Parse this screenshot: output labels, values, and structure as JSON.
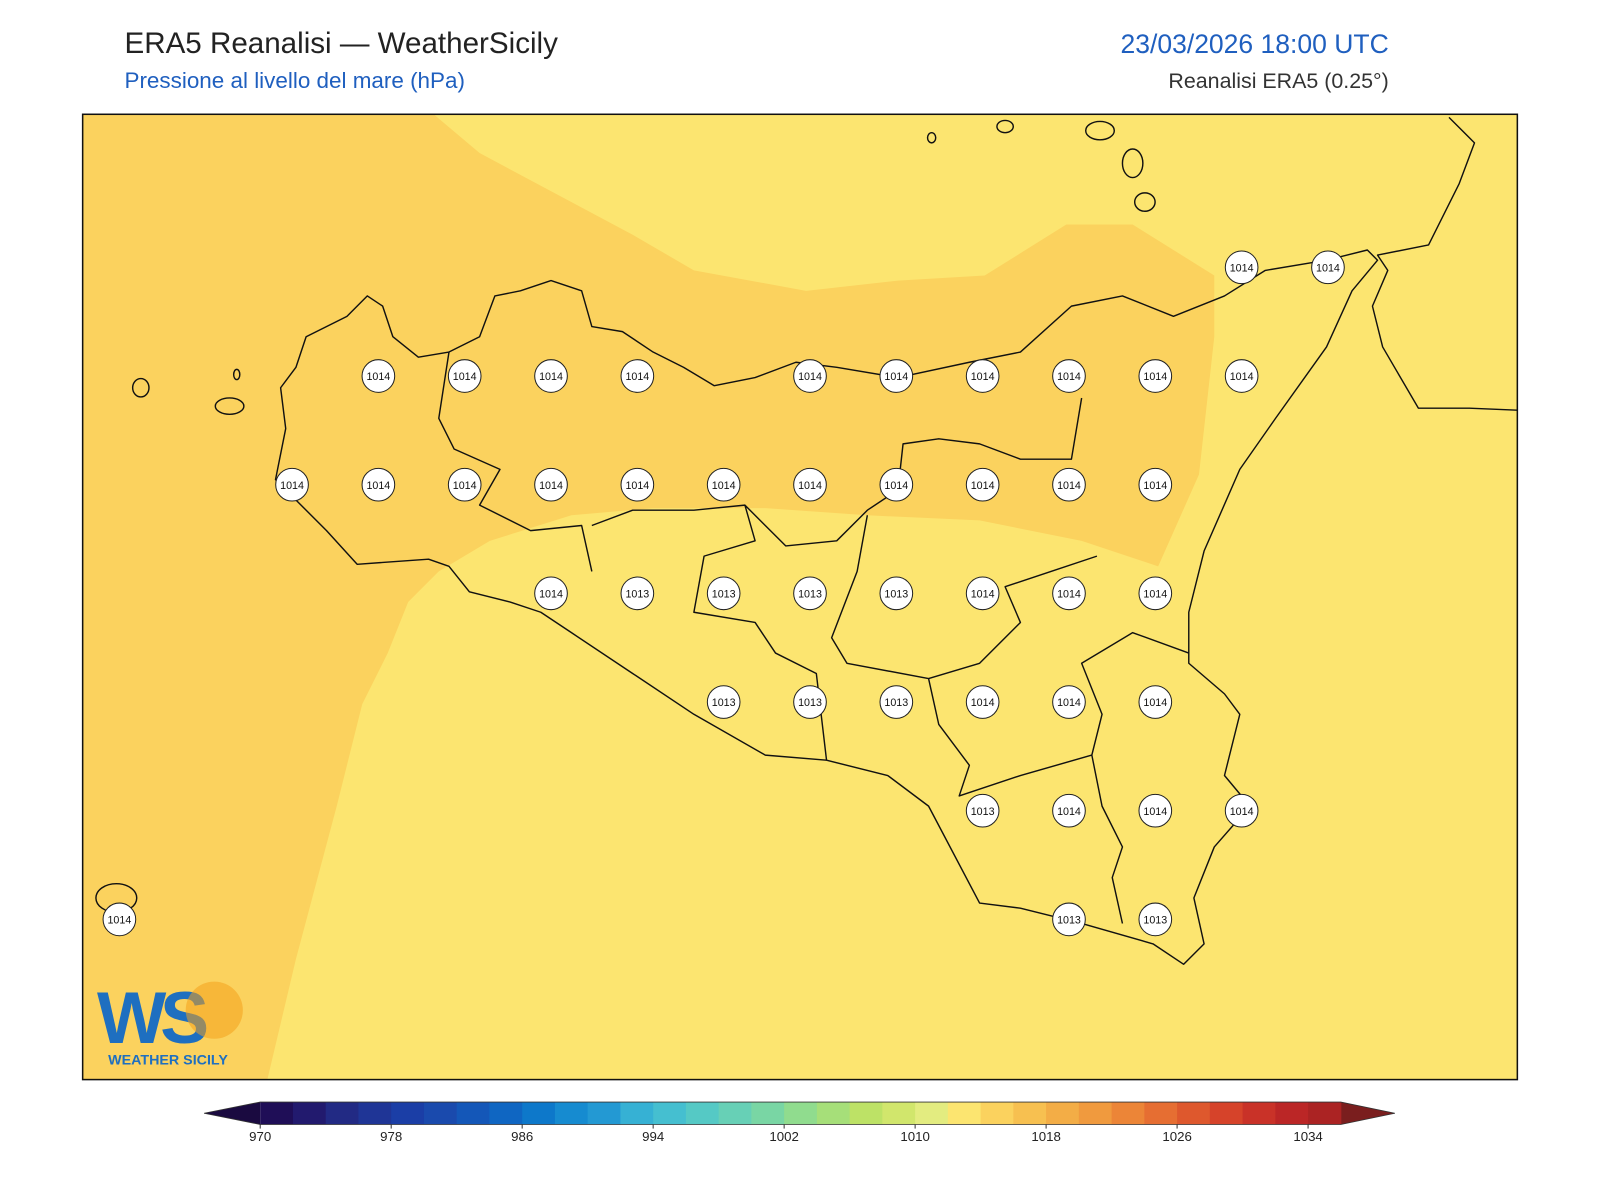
{
  "header": {
    "title": "ERA5 Reanalisi — WeatherSicily",
    "subtitle": "Pressione al livello del mare (hPa)",
    "datetime": "23/03/2026 18:00 UTC",
    "source": "Reanalisi ERA5 (0.25°)"
  },
  "stations": {
    "rows": [
      [
        null,
        null,
        null,
        null,
        null,
        null,
        null,
        null,
        null,
        null,
        null,
        null,
        null,
        1014,
        1014
      ],
      [
        null,
        null,
        null,
        1014,
        1014,
        1014,
        1014,
        null,
        1014,
        1014,
        1014,
        1014,
        1014,
        1014,
        null
      ],
      [
        null,
        null,
        1014,
        1014,
        1014,
        1014,
        1014,
        1014,
        1014,
        1014,
        1014,
        1014,
        1014,
        null,
        null
      ],
      [
        null,
        null,
        null,
        null,
        null,
        1014,
        1013,
        1013,
        1013,
        1013,
        1014,
        1014,
        1014,
        null,
        null
      ],
      [
        null,
        null,
        null,
        null,
        null,
        null,
        null,
        1013,
        1013,
        1013,
        1014,
        1014,
        1014,
        null,
        null
      ],
      [
        null,
        null,
        null,
        null,
        null,
        null,
        null,
        null,
        null,
        null,
        1013,
        1014,
        1014,
        1014,
        null
      ],
      [
        1014,
        null,
        null,
        null,
        null,
        null,
        null,
        null,
        null,
        null,
        null,
        1013,
        1013,
        null,
        null
      ]
    ]
  },
  "colorbar": {
    "clim": [
      970,
      1036
    ],
    "ticks": [
      970,
      978,
      986,
      994,
      1002,
      1010,
      1018,
      1026,
      1034
    ],
    "colors": [
      "#1f0e57",
      "#221a6e",
      "#222a84",
      "#1f3596",
      "#1b3ea6",
      "#1a4aad",
      "#1457b8",
      "#0f66c2",
      "#0d78ca",
      "#168bd0",
      "#2399d3",
      "#36b1d4",
      "#45bfd0",
      "#55c9c5",
      "#67d0b6",
      "#79d6a4",
      "#90dc8e",
      "#a6df79",
      "#bde266",
      "#d1e66c",
      "#e3ec80",
      "#fce570",
      "#fbd25e",
      "#f7c050",
      "#f3ad46",
      "#f09a3e",
      "#ec8537",
      "#e66e32",
      "#de582d",
      "#d6432a",
      "#c93228",
      "#bb2626",
      "#ab2323"
    ],
    "under_color": "#1a0a40",
    "over_color": "#7a1e1e"
  },
  "logo": {
    "mark": "WS",
    "text": "WEATHER SICILY"
  }
}
